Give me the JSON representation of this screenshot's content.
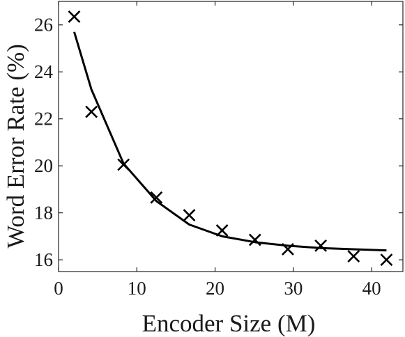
{
  "chart_data": {
    "type": "scatter",
    "title": "",
    "xlabel": "Encoder Size (M)",
    "ylabel": "Word Error Rate (%)",
    "xlim": [
      0,
      44
    ],
    "ylim": [
      15.5,
      27
    ],
    "xticks": [
      0,
      10,
      20,
      30,
      40
    ],
    "yticks": [
      16,
      18,
      20,
      22,
      24,
      26
    ],
    "grid": false,
    "series": [
      {
        "kind": "scatter",
        "marker": "x",
        "color": "#000000",
        "x": [
          2.0,
          4.2,
          8.3,
          12.5,
          16.7,
          20.9,
          25.1,
          29.3,
          33.5,
          37.7,
          41.9
        ],
        "y": [
          26.35,
          22.3,
          20.05,
          18.65,
          17.9,
          17.25,
          16.85,
          16.45,
          16.6,
          16.15,
          16.0
        ]
      },
      {
        "kind": "line",
        "color": "#000000",
        "x": [
          2.0,
          4.2,
          8.3,
          12.5,
          16.7,
          20.9,
          25.1,
          29.3,
          33.5,
          37.7,
          41.9
        ],
        "y": [
          25.7,
          23.25,
          20.1,
          18.5,
          17.5,
          17.0,
          16.75,
          16.6,
          16.5,
          16.45,
          16.4
        ]
      }
    ]
  }
}
